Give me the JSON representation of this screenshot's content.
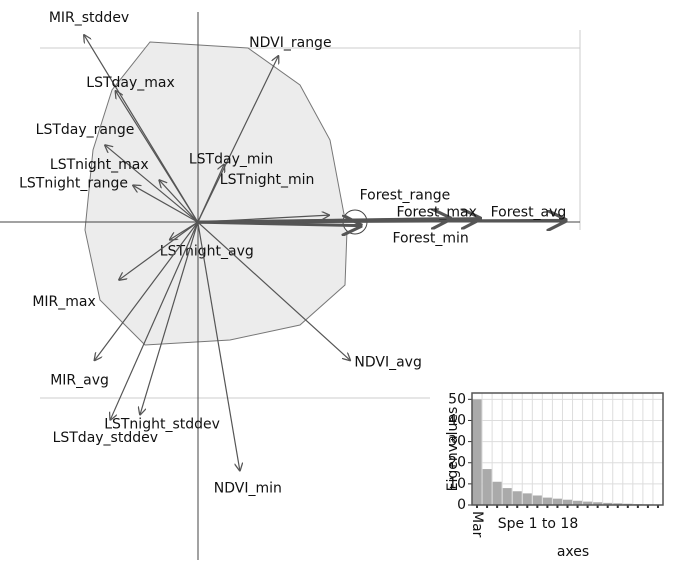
{
  "chart_data": [
    {
      "type": "biplot",
      "vector_color": "#555555",
      "hull_color": "#ececec",
      "xlim": [
        -1.13,
        2.72
      ],
      "ylim": [
        -1.96,
        1.27
      ],
      "vectors": [
        {
          "name": "MIR_stddev",
          "x": -0.65,
          "y": 1.07
        },
        {
          "name": "NDVI_range",
          "x": 0.46,
          "y": 0.95
        },
        {
          "name": "LSTday_max",
          "x": -0.47,
          "y": 0.75
        },
        {
          "name": "LSTday_range",
          "x": -0.53,
          "y": 0.44
        },
        {
          "name": "LSTday_min",
          "x": 0.15,
          "y": 0.33
        },
        {
          "name": "LSTnight_max",
          "x": -0.22,
          "y": 0.24
        },
        {
          "name": "LSTnight_range",
          "x": -0.37,
          "y": 0.21
        },
        {
          "name": "LSTnight_min",
          "x": 0.75,
          "y": 0.04
        },
        {
          "name": "Forest_range",
          "x": 1.44,
          "y": 0.02
        },
        {
          "name": "Forest_max",
          "x": 1.61,
          "y": 0.02
        },
        {
          "name": "Forest_avg",
          "x": 2.1,
          "y": 0.01
        },
        {
          "name": "Forest_min",
          "x": 0.93,
          "y": -0.02
        },
        {
          "name": "LSTnight_avg",
          "x": -0.16,
          "y": -0.1
        },
        {
          "name": "MIR_max",
          "x": -0.45,
          "y": -0.33
        },
        {
          "name": "MIR_avg",
          "x": -0.59,
          "y": -0.79
        },
        {
          "name": "LSTnight_stddev",
          "x": -0.33,
          "y": -1.1
        },
        {
          "name": "LSTday_stddev",
          "x": -0.5,
          "y": -1.13
        },
        {
          "name": "NDVI_avg",
          "x": 0.87,
          "y": -0.79
        },
        {
          "name": "NDVI_min",
          "x": 0.24,
          "y": -1.42
        }
      ]
    },
    {
      "type": "bar",
      "ylabel": "Eigenvalues",
      "xlabel_lines": [
        "Spe 1 to 18",
        "axes"
      ],
      "color": "#aaaaaa",
      "grid": true,
      "categories": [
        "Mar",
        null,
        null,
        null,
        null,
        null,
        null,
        null,
        null,
        null,
        null,
        null,
        null,
        null,
        null,
        null,
        null,
        null,
        null
      ],
      "values": [
        50,
        17,
        11,
        8,
        6.5,
        5.5,
        4.5,
        3.5,
        3,
        2.5,
        2,
        1.6,
        1.3,
        1,
        0.8,
        0.6,
        0.4,
        0.3,
        0.2
      ],
      "ylim": [
        0,
        53
      ],
      "yticks": [
        0,
        10,
        20,
        30,
        40,
        50
      ]
    }
  ]
}
